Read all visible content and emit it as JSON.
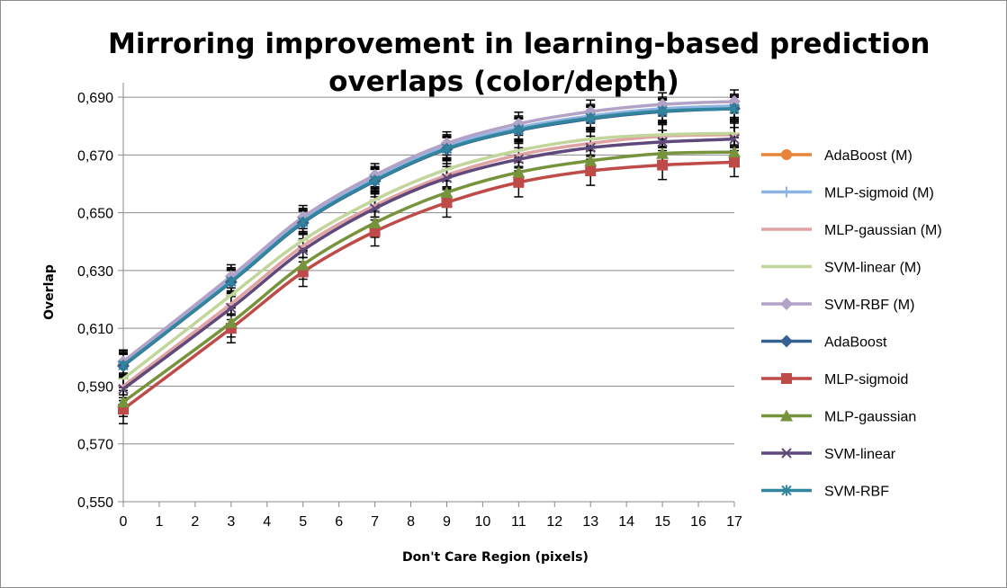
{
  "chart_data": {
    "type": "line",
    "title_lines": [
      "Mirroring improvement in learning-based prediction",
      "overlaps (color/depth)"
    ],
    "xlabel": "Don't Care Region (pixels)",
    "ylabel": "Overlap",
    "x_ticks": [
      "0",
      "1",
      "2",
      "3",
      "4",
      "5",
      "6",
      "7",
      "8",
      "9",
      "10",
      "11",
      "12",
      "13",
      "14",
      "15",
      "16",
      "17"
    ],
    "xlim": [
      0,
      17
    ],
    "y_ticks": [
      "0,550",
      "0,570",
      "0,590",
      "0,610",
      "0,630",
      "0,650",
      "0,670",
      "0,690"
    ],
    "ylim": [
      0.55,
      0.695
    ],
    "grid": "horizontal",
    "legend_position": "right",
    "x": [
      0,
      3,
      5,
      7,
      9,
      11,
      13,
      15,
      17
    ],
    "series": [
      {
        "name": "AdaBoost (M)",
        "color": "#E8843A",
        "marker": "circle",
        "values": [
          0.5975,
          0.6265,
          0.647,
          0.6615,
          0.6725,
          0.679,
          0.683,
          0.6855,
          0.6865
        ],
        "err": 0.004
      },
      {
        "name": "MLP-sigmoid (M)",
        "color": "#8EB4E3",
        "marker": "plus",
        "values": [
          0.598,
          0.627,
          0.6475,
          0.662,
          0.673,
          0.6795,
          0.6835,
          0.686,
          0.687
        ],
        "err": 0.004
      },
      {
        "name": "MLP-gaussian (M)",
        "color": "#E0A3A3",
        "marker": "dash",
        "values": [
          0.59,
          0.6185,
          0.6385,
          0.6525,
          0.663,
          0.67,
          0.674,
          0.6765,
          0.677
        ],
        "err": 0.004
      },
      {
        "name": "SVM-linear (M)",
        "color": "#C2D69B",
        "marker": "dash",
        "values": [
          0.5925,
          0.6215,
          0.6405,
          0.6545,
          0.665,
          0.6715,
          0.6755,
          0.677,
          0.6775
        ],
        "err": 0.004
      },
      {
        "name": "SVM-RBF (M)",
        "color": "#B3A2C7",
        "marker": "diamond",
        "values": [
          0.5985,
          0.628,
          0.6485,
          0.663,
          0.674,
          0.6808,
          0.685,
          0.6875,
          0.6885
        ],
        "err": 0.004
      },
      {
        "name": "AdaBoost",
        "color": "#376092",
        "marker": "diamond",
        "values": [
          0.597,
          0.626,
          0.6465,
          0.661,
          0.672,
          0.6785,
          0.6825,
          0.685,
          0.686
        ],
        "err": 0.004
      },
      {
        "name": "MLP-sigmoid",
        "color": "#BE4B48",
        "marker": "square",
        "values": [
          0.582,
          0.61,
          0.6295,
          0.6435,
          0.6535,
          0.6605,
          0.6645,
          0.6665,
          0.6675
        ],
        "err": 0.005
      },
      {
        "name": "MLP-gaussian",
        "color": "#77933C",
        "marker": "triangle",
        "values": [
          0.5845,
          0.612,
          0.632,
          0.6465,
          0.657,
          0.664,
          0.668,
          0.6705,
          0.671
        ],
        "err": 0.005
      },
      {
        "name": "SVM-linear",
        "color": "#5F497A",
        "marker": "x",
        "values": [
          0.589,
          0.617,
          0.637,
          0.6515,
          0.662,
          0.6685,
          0.6725,
          0.6745,
          0.6755
        ],
        "err": 0.004
      },
      {
        "name": "SVM-RBF",
        "color": "#31859C",
        "marker": "star",
        "values": [
          0.5972,
          0.6262,
          0.6468,
          0.6612,
          0.6722,
          0.6787,
          0.6828,
          0.6852,
          0.686
        ],
        "err": 0.004
      }
    ]
  }
}
